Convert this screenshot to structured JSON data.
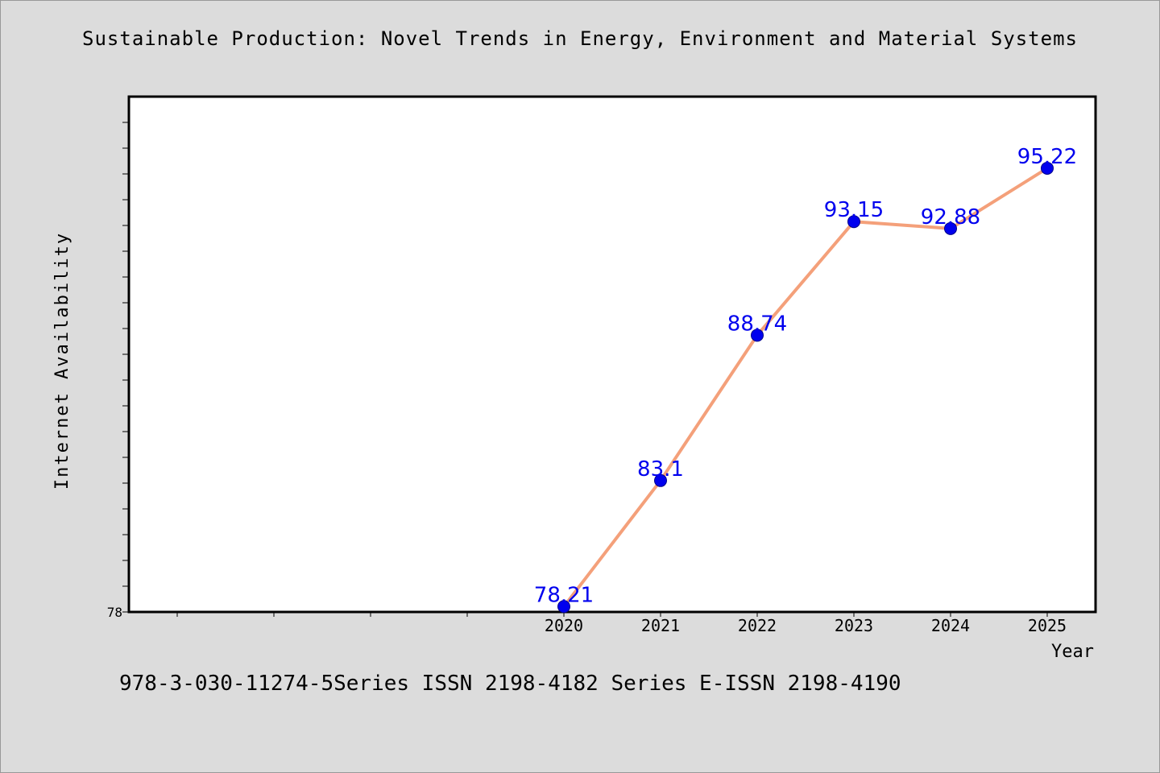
{
  "title": "Sustainable Production: Novel Trends in Energy, Environment and Material Systems",
  "footer": "978-3-030-11274-5Series ISSN 2198-4182 Series E-ISSN 2198-4190",
  "chart_data": {
    "type": "line",
    "title": "Sustainable Production: Novel Trends in Energy, Environment and Material Systems",
    "xlabel": "Year",
    "ylabel": "Internet Availability",
    "x": [
      "2020",
      "2021",
      "2022",
      "2023",
      "2024",
      "2025"
    ],
    "series": [
      {
        "values": [
          78.21,
          83.1,
          88.74,
          93.15,
          92.88,
          95.22
        ]
      }
    ],
    "data_labels": [
      "78.21",
      "83.1",
      "88.74",
      "93.15",
      "92.88",
      "95.22"
    ],
    "y_tick_labels": [
      "78"
    ],
    "ylim": [
      78,
      98
    ],
    "grid": false,
    "legend": "none",
    "colors": {
      "line": "#f4a07a",
      "marker": "#0000ee",
      "label": "#0000ee",
      "plot_bg": "#ffffff",
      "page_bg": "#dcdcdc"
    }
  }
}
